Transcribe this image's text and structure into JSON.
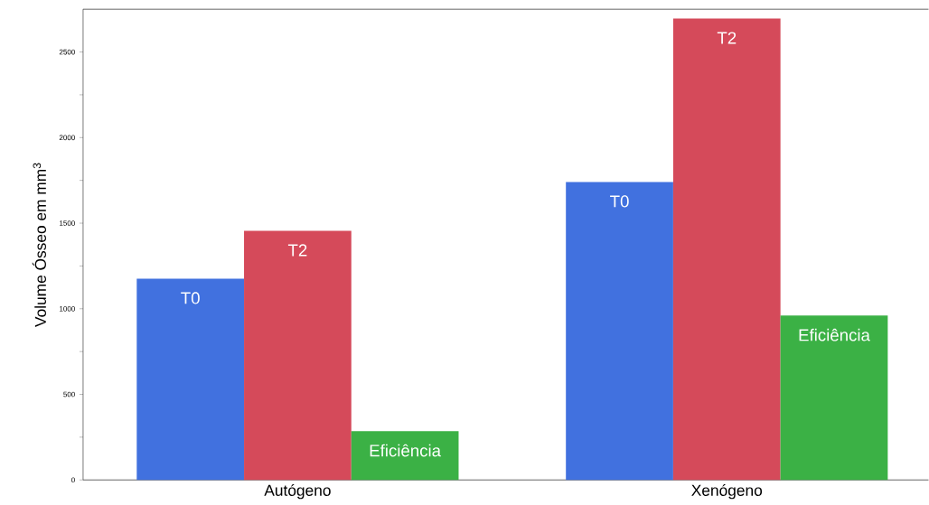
{
  "chart_data": {
    "type": "bar",
    "ylabel": "Volume Ósseo em mm$^{3}$",
    "categories": [
      "Autógeno",
      "Xenógeno"
    ],
    "series": [
      {
        "name": "T0",
        "color": "#4171df",
        "values": [
          1175,
          1740
        ]
      },
      {
        "name": "T2",
        "color": "#d54a5a",
        "values": [
          1455,
          2695
        ]
      },
      {
        "name": "Eficiência",
        "color": "#3bb145",
        "values": [
          285,
          960
        ]
      }
    ],
    "ylim": [
      0,
      2750
    ],
    "yticks": [
      0,
      {
        "value": 250,
        "label": null
      },
      500,
      {
        "value": 750,
        "label": null
      },
      1000,
      {
        "value": 1250,
        "label": null
      },
      1500,
      {
        "value": 1750,
        "label": null
      },
      2000,
      {
        "value": 2250,
        "label": null
      },
      2500
    ],
    "grid": false,
    "legend": false
  }
}
